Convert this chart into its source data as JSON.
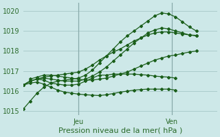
{
  "title": "",
  "xlabel": "Pression niveau de la mer( hPa )",
  "ylabel": "",
  "bg_color": "#cde8e8",
  "grid_color": "#aacccc",
  "line_color": "#1a5e1a",
  "ylim": [
    1014.8,
    1020.4
  ],
  "xlim": [
    0,
    56
  ],
  "jeu_x": 16,
  "ven_x": 43,
  "tick_label_color": "#2a6a2a",
  "yticks": [
    1015,
    1016,
    1017,
    1018,
    1019,
    1020
  ],
  "lines": [
    {
      "x": [
        0,
        2,
        4,
        6,
        8,
        10,
        12,
        14,
        16,
        18,
        20,
        22,
        24,
        26,
        28,
        30,
        32,
        34,
        36,
        38,
        40,
        42,
        44,
        46,
        48,
        50
      ],
      "y": [
        1015.1,
        1015.5,
        1015.9,
        1016.2,
        1016.4,
        1016.5,
        1016.55,
        1016.6,
        1016.65,
        1016.8,
        1017.05,
        1017.4,
        1017.75,
        1018.1,
        1018.45,
        1018.75,
        1019.0,
        1019.25,
        1019.5,
        1019.75,
        1019.9,
        1019.85,
        1019.7,
        1019.45,
        1019.2,
        1019.0
      ]
    },
    {
      "x": [
        0,
        2,
        4,
        6,
        8,
        10,
        12,
        14,
        16,
        18,
        20,
        22,
        24,
        26,
        28,
        30,
        32,
        34,
        36,
        38,
        40,
        42,
        44,
        46,
        48,
        50
      ],
      "y": [
        1016.3,
        1016.5,
        1016.6,
        1016.65,
        1016.6,
        1016.55,
        1016.5,
        1016.5,
        1016.5,
        1016.6,
        1016.75,
        1016.95,
        1017.2,
        1017.5,
        1017.8,
        1018.1,
        1018.4,
        1018.65,
        1018.9,
        1019.05,
        1019.15,
        1019.1,
        1019.0,
        1018.9,
        1018.8,
        1018.75
      ]
    },
    {
      "x": [
        0,
        2,
        4,
        6,
        8,
        10,
        12,
        14,
        16,
        18,
        20,
        22,
        24,
        26,
        28,
        30,
        32,
        34,
        36,
        38,
        40,
        42,
        44,
        46,
        48,
        50
      ],
      "y": [
        1016.3,
        1016.5,
        1016.6,
        1016.7,
        1016.75,
        1016.8,
        1016.85,
        1016.9,
        1016.95,
        1017.1,
        1017.3,
        1017.55,
        1017.75,
        1017.95,
        1018.1,
        1018.3,
        1018.5,
        1018.65,
        1018.8,
        1018.9,
        1018.95,
        1018.95,
        1018.9,
        1018.85,
        1018.8,
        1018.78
      ]
    },
    {
      "x": [
        0,
        2,
        4,
        6,
        8,
        10,
        12,
        14,
        16,
        18,
        20,
        22,
        24,
        26,
        28,
        30,
        32,
        34,
        36,
        38,
        40,
        42,
        44
      ],
      "y": [
        1016.3,
        1016.5,
        1016.6,
        1016.55,
        1016.4,
        1016.35,
        1016.3,
        1016.3,
        1016.35,
        1016.5,
        1016.65,
        1016.8,
        1016.8,
        1016.85,
        1016.85,
        1016.85,
        1016.85,
        1016.82,
        1016.8,
        1016.75,
        1016.72,
        1016.7,
        1016.65
      ]
    },
    {
      "x": [
        0,
        2,
        4,
        6,
        8,
        10,
        12,
        14,
        16,
        18,
        20,
        22,
        24,
        26,
        28,
        30,
        32,
        34,
        36,
        38,
        40,
        42,
        44
      ],
      "y": [
        1016.3,
        1016.4,
        1016.45,
        1016.35,
        1016.2,
        1016.05,
        1015.95,
        1015.9,
        1015.85,
        1015.82,
        1015.8,
        1015.78,
        1015.82,
        1015.88,
        1015.95,
        1016.0,
        1016.05,
        1016.08,
        1016.1,
        1016.1,
        1016.1,
        1016.1,
        1016.05
      ]
    },
    {
      "x": [
        2,
        4,
        6,
        8,
        10,
        12,
        14,
        16,
        18,
        20,
        22,
        24,
        26,
        28,
        30,
        32,
        34,
        36,
        38,
        40,
        42,
        44,
        46,
        48,
        50
      ],
      "y": [
        1016.6,
        1016.7,
        1016.8,
        1016.8,
        1016.75,
        1016.7,
        1016.65,
        1016.6,
        1016.55,
        1016.55,
        1016.6,
        1016.65,
        1016.75,
        1016.85,
        1016.95,
        1017.1,
        1017.25,
        1017.4,
        1017.55,
        1017.65,
        1017.75,
        1017.8,
        1017.88,
        1017.95,
        1018.0
      ]
    }
  ]
}
